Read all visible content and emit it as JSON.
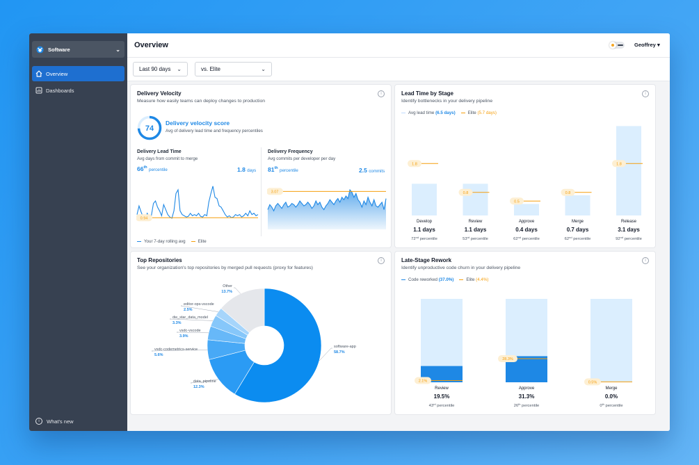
{
  "app": {
    "title": "Overview",
    "user": "Geoffrey",
    "workspace": "Software"
  },
  "sidebar": {
    "items": [
      {
        "label": "Overview"
      },
      {
        "label": "Dashboards"
      }
    ],
    "footer": "What's new"
  },
  "filters": {
    "range": "Last 90 days",
    "compare": "vs. Elite"
  },
  "velocity": {
    "title": "Delivery Velocity",
    "subtitle": "Measure how easily teams can deploy changes to production",
    "score": "74",
    "score_title": "Delivery velocity score",
    "score_sub": "Avg of delivery lead time and frequency percentiles",
    "lead": {
      "title": "Delivery Lead Time",
      "sub": "Avg days from commit to merge",
      "pct": "66",
      "sup": "th",
      "pct_word": "percentile",
      "value": "1.8",
      "unit": "days",
      "elite": "0.94"
    },
    "freq": {
      "title": "Delivery Frequency",
      "sub": "Avg commits per developer per day",
      "pct": "81",
      "sup": "th",
      "pct_word": "percentile",
      "value": "2.5",
      "unit": "commits",
      "elite": "3.07"
    },
    "legend": {
      "avg": "Your 7-day rolling avg",
      "elite": "Elite"
    }
  },
  "leadtime": {
    "title": "Lead Time by Stage",
    "subtitle": "Identify bottlenecks in your delivery pipeline",
    "legend_avg": "Avg lead time",
    "legend_avg_val": "(6.5 days)",
    "legend_elite": "Elite",
    "legend_elite_val": "(5.7 days)",
    "stages": [
      {
        "name": "Develop",
        "value": "1.1 days",
        "pct": "72",
        "sup": "nd",
        "pct_word": "percentile",
        "elite": "1.8"
      },
      {
        "name": "Review",
        "value": "1.1 days",
        "pct": "53",
        "sup": "rd",
        "pct_word": "percentile",
        "elite": "0.8"
      },
      {
        "name": "Approve",
        "value": "0.4 days",
        "pct": "62",
        "sup": "nd",
        "pct_word": "percentile",
        "elite": "0.5"
      },
      {
        "name": "Merge",
        "value": "0.7 days",
        "pct": "62",
        "sup": "nd",
        "pct_word": "percentile",
        "elite": "0.8"
      },
      {
        "name": "Release",
        "value": "3.1 days",
        "pct": "92",
        "sup": "nd",
        "pct_word": "percentile",
        "elite": "1.8"
      }
    ]
  },
  "repos": {
    "title": "Top Repositories",
    "subtitle": "See your organization's top repositories by merged pull requests (proxy for features)",
    "slices": [
      {
        "name": "software-app",
        "pct": "58.7%"
      },
      {
        "name": "data_pipeline",
        "pct": "12.3%"
      },
      {
        "name": "vsdc-codemetrics-service",
        "pct": "5.6%"
      },
      {
        "name": "vsdc-vscode",
        "pct": "3.9%"
      },
      {
        "name": "dw_star_data_model",
        "pct": "3.3%"
      },
      {
        "name": "editor-ops-vscode",
        "pct": "2.5%"
      },
      {
        "name": "Other",
        "pct": "13.7%"
      }
    ]
  },
  "rework": {
    "title": "Late-Stage Rework",
    "subtitle": "Identify unproductive code churn in your delivery pipeline",
    "legend_code": "Code reworked",
    "legend_code_val": "(37.0%)",
    "legend_elite": "Elite",
    "legend_elite_val": "(4.4%)",
    "stages": [
      {
        "name": "Review",
        "value": "19.5%",
        "pct": "43",
        "sup": "rd",
        "pct_word": "percentile",
        "elite": "2.1%"
      },
      {
        "name": "Approve",
        "value": "31.3%",
        "pct": "26",
        "sup": "th",
        "pct_word": "percentile",
        "elite": "28.3%"
      },
      {
        "name": "Merge",
        "value": "0.0%",
        "pct": "0",
        "sup": "th",
        "pct_word": "percentile",
        "elite": "0.5%"
      }
    ]
  },
  "colors": {
    "accent": "#1e88e5",
    "elite": "#f59e0b",
    "light": "#dbeefe",
    "sidebar": "#374151"
  },
  "chart_data": [
    {
      "type": "line",
      "title": "Delivery Lead Time",
      "series": [
        {
          "name": "Your 7-day rolling avg",
          "values": [
            1.2,
            1.9,
            1.4,
            1.0,
            0.9,
            1.3,
            0.95,
            1.1,
            2.1,
            2.3,
            1.8,
            1.5,
            1.1,
            2.0,
            1.6,
            1.2,
            1.0,
            0.9,
            1.5,
            2.9,
            3.2,
            1.5,
            1.2,
            1.1,
            1.0,
            1.05,
            1.3,
            1.1,
            1.2,
            1.1,
            1.3,
            1.05,
            1.0,
            1.2,
            1.1,
            2.2,
            2.9,
            3.5,
            2.6,
            2.5,
            1.9,
            1.8,
            1.5,
            1.2,
            1.0,
            1.1,
            0.95,
            1.0,
            1.2,
            1.1,
            1.2,
            1.0,
            1.1,
            1.3,
            1.1,
            1.5,
            1.2,
            1.3,
            1.1,
            1.2
          ]
        },
        {
          "name": "Elite",
          "values": [
            0.94
          ]
        }
      ]
    },
    {
      "type": "area",
      "title": "Delivery Frequency",
      "series": [
        {
          "name": "Your 7-day rolling avg",
          "values": [
            1.6,
            2.0,
            1.8,
            1.5,
            1.9,
            2.1,
            1.9,
            1.7,
            2.0,
            2.2,
            1.8,
            1.9,
            2.1,
            2.0,
            1.8,
            2.0,
            2.3,
            2.1,
            1.9,
            2.0,
            2.2,
            2.0,
            1.7,
            1.9,
            2.3,
            2.0,
            2.2,
            1.8,
            1.6,
            1.9,
            2.1,
            2.4,
            2.2,
            2.0,
            2.3,
            2.5,
            2.2,
            2.6,
            2.4,
            2.7,
            2.5,
            3.2,
            3.0,
            2.6,
            2.9,
            2.4,
            2.2,
            1.8,
            2.3,
            2.0,
            2.6,
            2.2,
            1.9,
            2.4,
            1.9,
            1.8,
            2.0,
            2.2,
            1.6,
            2.5
          ]
        },
        {
          "name": "Elite",
          "values": [
            3.07
          ]
        }
      ]
    },
    {
      "type": "bar",
      "title": "Lead Time by Stage",
      "categories": [
        "Develop",
        "Review",
        "Approve",
        "Merge",
        "Release"
      ],
      "series": [
        {
          "name": "Avg lead time",
          "values": [
            1.1,
            1.1,
            0.4,
            0.7,
            3.1
          ]
        },
        {
          "name": "Elite",
          "values": [
            1.8,
            0.8,
            0.5,
            0.8,
            1.8
          ]
        }
      ]
    },
    {
      "type": "pie",
      "title": "Top Repositories",
      "categories": [
        "software-app",
        "data_pipeline",
        "vsdc-codemetrics-service",
        "vsdc-vscode",
        "dw_star_data_model",
        "editor-ops-vscode",
        "Other"
      ],
      "values": [
        58.7,
        12.3,
        5.6,
        3.9,
        3.3,
        2.5,
        13.7
      ]
    },
    {
      "type": "bar",
      "title": "Late-Stage Rework",
      "categories": [
        "Review",
        "Approve",
        "Merge"
      ],
      "series": [
        {
          "name": "Code reworked",
          "values": [
            19.5,
            31.3,
            0.0
          ]
        },
        {
          "name": "Elite",
          "values": [
            2.1,
            28.3,
            0.5
          ]
        }
      ]
    }
  ]
}
